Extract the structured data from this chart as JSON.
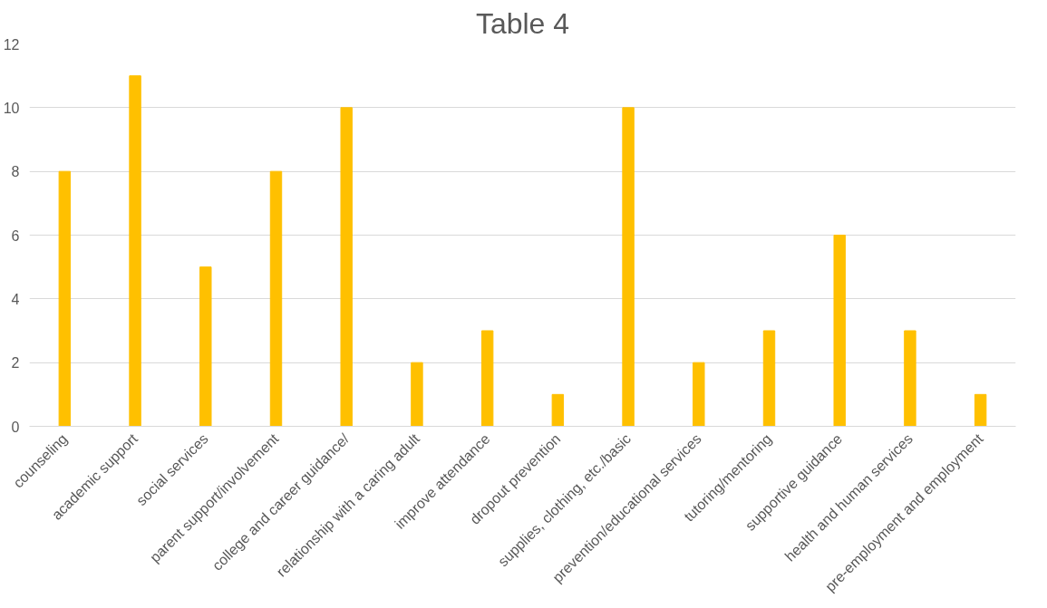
{
  "chart_data": {
    "type": "bar",
    "title": "Table 4",
    "categories": [
      "counseling",
      "academic support",
      "social services",
      "parent support/involvement",
      "college and career guidance/",
      "relationship with a caring adult",
      "improve attendance",
      "dropout prevention",
      "supplies, clothing, etc./basic",
      "prevention/educational services",
      "tutoring/mentoring",
      "supportive guidance",
      "health and human services",
      "pre-employment and employment"
    ],
    "values": [
      8,
      11,
      5,
      8,
      10,
      2,
      3,
      1,
      10,
      2,
      3,
      6,
      3,
      1
    ],
    "color": "#ffc000",
    "ylim": [
      0,
      12
    ],
    "yticks": [
      0,
      2,
      4,
      6,
      8,
      10,
      12
    ],
    "grid": "y"
  }
}
